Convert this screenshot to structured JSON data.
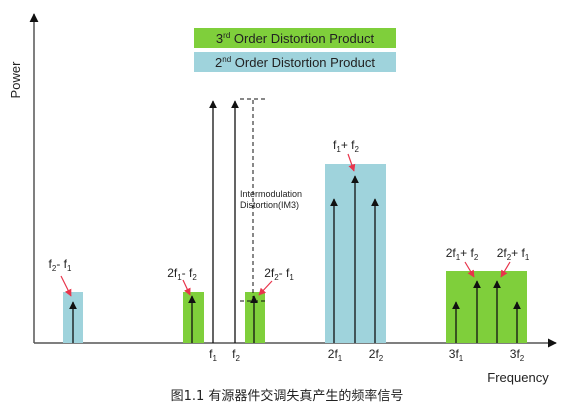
{
  "legend": {
    "third_order": {
      "label": "3",
      "sup": "rd",
      "rest": " Order Distortion Product",
      "color": "#7fcf3b"
    },
    "second_order": {
      "label": "2",
      "sup": "nd",
      "rest": " Order Distortion Product",
      "color": "#9fd3dc"
    }
  },
  "axes": {
    "y_label": "Power",
    "x_label": "Frequency"
  },
  "annotation": {
    "line1": "Intermodulation",
    "line2": "Distortion(IM3)"
  },
  "labels": {
    "f2_minus_f1_left": "f2-f1",
    "two_f1_minus_f2": "2f1-f2",
    "two_f2_minus_f1": "2f2-f1",
    "f1_plus_f2": "f1+f2",
    "two_f1_plus_f2": "2f1+f2",
    "two_f2_plus_f1": "2f2+f1"
  },
  "x_ticks": [
    "f1",
    "f2",
    "2f1",
    "2f2",
    "3f1",
    "3f2"
  ],
  "caption": "图1.1 有源器件交调失真产生的频率信号",
  "colors": {
    "green": "#7fcf3b",
    "blue": "#9fd3dc",
    "arrow": "#111111",
    "pointer": "#e8344b"
  }
}
